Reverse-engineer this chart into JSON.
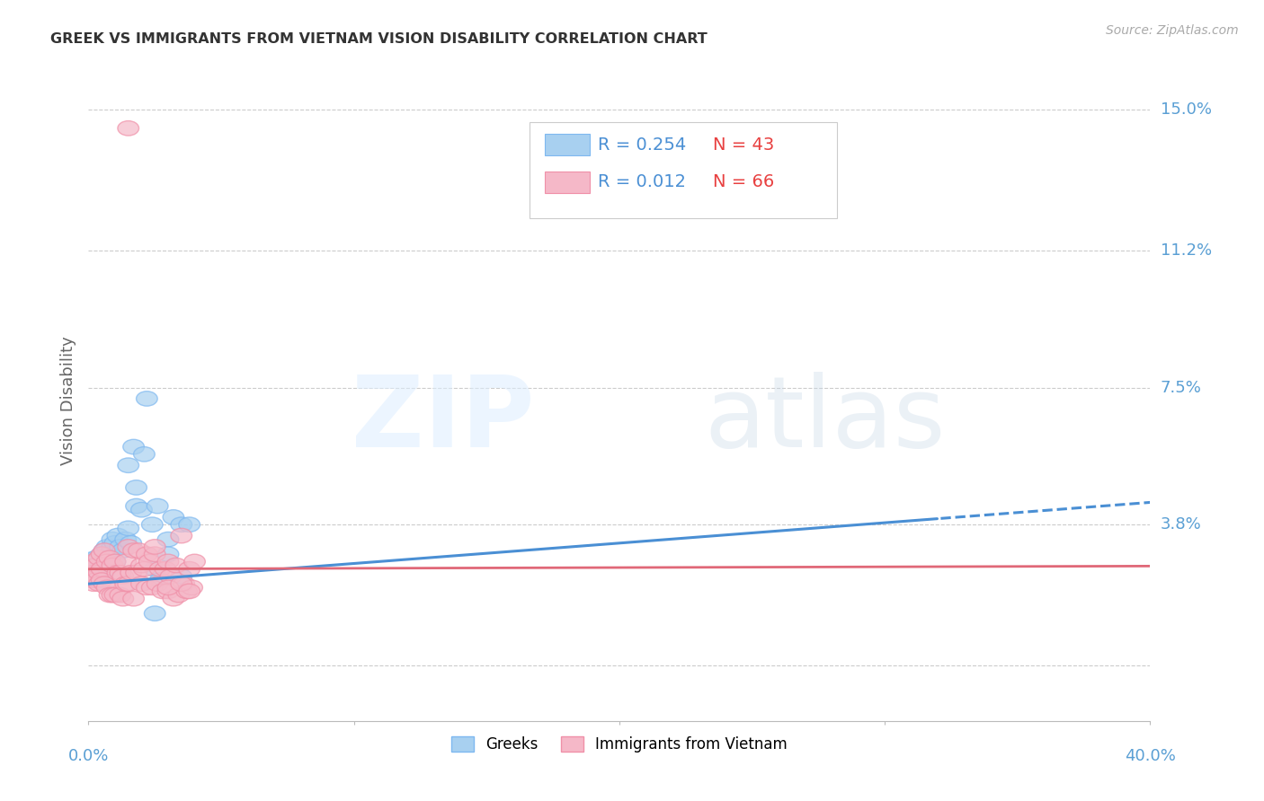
{
  "title": "GREEK VS IMMIGRANTS FROM VIETNAM VISION DISABILITY CORRELATION CHART",
  "source": "Source: ZipAtlas.com",
  "ylabel": "Vision Disability",
  "yticks": [
    0.0,
    0.038,
    0.075,
    0.112,
    0.15
  ],
  "ytick_labels": [
    "",
    "3.8%",
    "7.5%",
    "11.2%",
    "15.0%"
  ],
  "xlim": [
    0.0,
    0.4
  ],
  "ylim": [
    -0.015,
    0.158
  ],
  "blue_color": "#a8d0f0",
  "pink_color": "#f5b8c8",
  "blue_edge": "#7eb8f0",
  "pink_edge": "#f090a8",
  "blue_line_color": "#4a8fd4",
  "pink_line_color": "#e06878",
  "background_color": "#ffffff",
  "grid_color": "#cccccc",
  "axis_label_color": "#5a9fd4",
  "source_color": "#aaaaaa",
  "greek_line_slope": 0.055,
  "greek_line_intercept": 0.022,
  "vietnam_line_slope": 0.002,
  "vietnam_line_intercept": 0.026,
  "greek_points": [
    [
      0.001,
      0.028
    ],
    [
      0.002,
      0.026
    ],
    [
      0.002,
      0.023
    ],
    [
      0.003,
      0.029
    ],
    [
      0.003,
      0.025
    ],
    [
      0.004,
      0.027
    ],
    [
      0.004,
      0.024
    ],
    [
      0.005,
      0.03
    ],
    [
      0.005,
      0.026
    ],
    [
      0.005,
      0.023
    ],
    [
      0.006,
      0.031
    ],
    [
      0.006,
      0.028
    ],
    [
      0.007,
      0.032
    ],
    [
      0.007,
      0.029
    ],
    [
      0.008,
      0.03
    ],
    [
      0.009,
      0.032
    ],
    [
      0.009,
      0.034
    ],
    [
      0.01,
      0.033
    ],
    [
      0.01,
      0.028
    ],
    [
      0.011,
      0.035
    ],
    [
      0.012,
      0.032
    ],
    [
      0.013,
      0.031
    ],
    [
      0.014,
      0.034
    ],
    [
      0.015,
      0.037
    ],
    [
      0.015,
      0.054
    ],
    [
      0.016,
      0.033
    ],
    [
      0.017,
      0.059
    ],
    [
      0.018,
      0.048
    ],
    [
      0.018,
      0.043
    ],
    [
      0.02,
      0.042
    ],
    [
      0.021,
      0.057
    ],
    [
      0.022,
      0.072
    ],
    [
      0.024,
      0.038
    ],
    [
      0.025,
      0.014
    ],
    [
      0.025,
      0.026
    ],
    [
      0.026,
      0.043
    ],
    [
      0.027,
      0.023
    ],
    [
      0.03,
      0.034
    ],
    [
      0.03,
      0.03
    ],
    [
      0.032,
      0.04
    ],
    [
      0.035,
      0.024
    ],
    [
      0.035,
      0.038
    ],
    [
      0.038,
      0.038
    ]
  ],
  "vietnam_points": [
    [
      0.001,
      0.026
    ],
    [
      0.001,
      0.023
    ],
    [
      0.002,
      0.028
    ],
    [
      0.002,
      0.025
    ],
    [
      0.002,
      0.022
    ],
    [
      0.003,
      0.027
    ],
    [
      0.003,
      0.023
    ],
    [
      0.004,
      0.029
    ],
    [
      0.004,
      0.025
    ],
    [
      0.004,
      0.022
    ],
    [
      0.005,
      0.03
    ],
    [
      0.005,
      0.026
    ],
    [
      0.005,
      0.023
    ],
    [
      0.006,
      0.031
    ],
    [
      0.006,
      0.022
    ],
    [
      0.007,
      0.028
    ],
    [
      0.007,
      0.021
    ],
    [
      0.008,
      0.029
    ],
    [
      0.008,
      0.019
    ],
    [
      0.009,
      0.027
    ],
    [
      0.009,
      0.019
    ],
    [
      0.01,
      0.028
    ],
    [
      0.01,
      0.019
    ],
    [
      0.011,
      0.025
    ],
    [
      0.012,
      0.025
    ],
    [
      0.012,
      0.019
    ],
    [
      0.013,
      0.024
    ],
    [
      0.013,
      0.018
    ],
    [
      0.014,
      0.028
    ],
    [
      0.014,
      0.022
    ],
    [
      0.015,
      0.032
    ],
    [
      0.015,
      0.022
    ],
    [
      0.016,
      0.025
    ],
    [
      0.017,
      0.031
    ],
    [
      0.017,
      0.018
    ],
    [
      0.018,
      0.025
    ],
    [
      0.019,
      0.031
    ],
    [
      0.02,
      0.027
    ],
    [
      0.02,
      0.022
    ],
    [
      0.021,
      0.026
    ],
    [
      0.022,
      0.03
    ],
    [
      0.022,
      0.021
    ],
    [
      0.023,
      0.028
    ],
    [
      0.024,
      0.021
    ],
    [
      0.025,
      0.03
    ],
    [
      0.026,
      0.022
    ],
    [
      0.027,
      0.026
    ],
    [
      0.028,
      0.02
    ],
    [
      0.029,
      0.026
    ],
    [
      0.03,
      0.028
    ],
    [
      0.03,
      0.02
    ],
    [
      0.031,
      0.024
    ],
    [
      0.032,
      0.018
    ],
    [
      0.033,
      0.027
    ],
    [
      0.034,
      0.019
    ],
    [
      0.035,
      0.035
    ],
    [
      0.036,
      0.022
    ],
    [
      0.037,
      0.02
    ],
    [
      0.038,
      0.026
    ],
    [
      0.039,
      0.021
    ],
    [
      0.04,
      0.028
    ],
    [
      0.015,
      0.145
    ],
    [
      0.025,
      0.032
    ],
    [
      0.03,
      0.021
    ],
    [
      0.035,
      0.022
    ],
    [
      0.038,
      0.02
    ]
  ]
}
